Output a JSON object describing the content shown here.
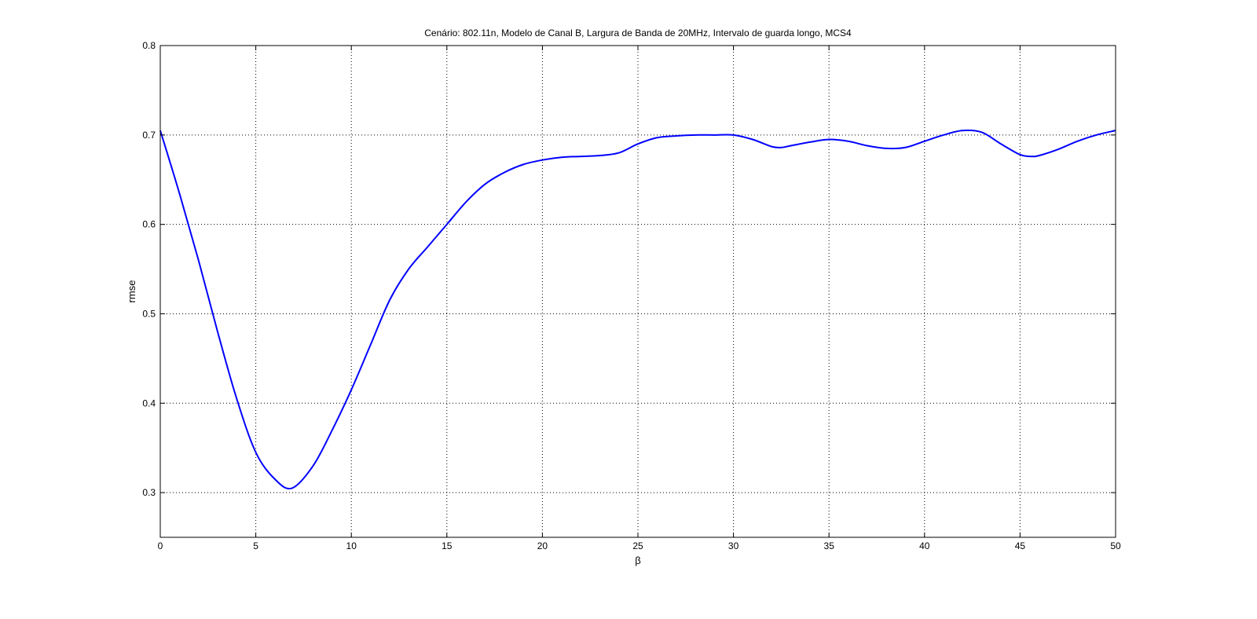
{
  "chart_data": {
    "type": "line",
    "title": "Cenário: 802.11n, Modelo de Canal B, Largura de Banda de 20MHz, Intervalo de guarda longo, MCS4",
    "xlabel": "β",
    "ylabel": "rmse",
    "xlim": [
      0,
      50
    ],
    "ylim": [
      0.25,
      0.8
    ],
    "xticks": [
      0,
      5,
      10,
      15,
      20,
      25,
      30,
      35,
      40,
      45,
      50
    ],
    "xtick_labels": [
      "0",
      "5",
      "10",
      "15",
      "20",
      "25",
      "30",
      "35",
      "40",
      "45",
      "50"
    ],
    "yticks": [
      0.3,
      0.4,
      0.5,
      0.6,
      0.7,
      0.8
    ],
    "ytick_labels": [
      "0.3",
      "0.4",
      "0.5",
      "0.6",
      "0.7",
      "0.8"
    ],
    "grid": true,
    "line_color": "#0000ff",
    "series": [
      {
        "x": [
          0,
          1,
          2,
          3,
          4,
          5,
          6,
          6.9,
          8,
          9,
          10,
          11,
          12,
          13,
          14,
          15,
          16,
          17,
          18,
          19,
          20,
          21,
          22,
          23,
          24,
          25,
          26,
          27,
          28,
          29,
          30,
          31,
          32,
          32.5,
          33,
          34,
          35,
          36,
          37,
          38,
          39,
          40,
          41,
          42,
          43,
          44,
          45,
          45.6,
          46,
          47,
          48,
          49,
          50
        ],
        "y": [
          0.705,
          0.635,
          0.56,
          0.48,
          0.405,
          0.345,
          0.315,
          0.305,
          0.33,
          0.37,
          0.415,
          0.465,
          0.515,
          0.55,
          0.575,
          0.6,
          0.625,
          0.645,
          0.658,
          0.667,
          0.672,
          0.675,
          0.676,
          0.677,
          0.68,
          0.69,
          0.697,
          0.699,
          0.7,
          0.7,
          0.7,
          0.695,
          0.687,
          0.686,
          0.688,
          0.692,
          0.695,
          0.693,
          0.688,
          0.685,
          0.686,
          0.693,
          0.7,
          0.705,
          0.703,
          0.69,
          0.678,
          0.676,
          0.677,
          0.684,
          0.693,
          0.7,
          0.705
        ]
      }
    ]
  }
}
